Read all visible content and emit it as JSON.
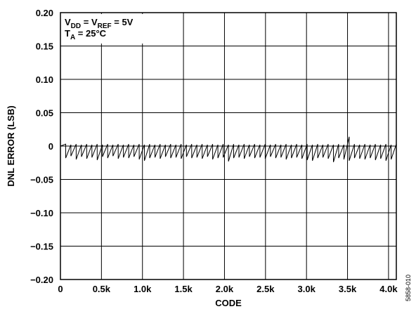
{
  "chart_data": {
    "type": "line",
    "title": "",
    "xlabel": "CODE",
    "ylabel": "DNL ERROR (LSB)",
    "xlim": [
      0,
      4095
    ],
    "ylim": [
      -0.2,
      0.2
    ],
    "grid": true,
    "x_ticks": [
      0,
      500,
      1000,
      1500,
      2000,
      2500,
      3000,
      3500,
      4000
    ],
    "x_tick_labels": [
      "0",
      "0.5k",
      "1.0k",
      "1.5k",
      "2.0k",
      "2.5k",
      "3.0k",
      "3.5k",
      "4.0k"
    ],
    "y_ticks": [
      0.2,
      0.15,
      0.1,
      0.05,
      0,
      -0.05,
      -0.1,
      -0.15,
      -0.2
    ],
    "y_tick_labels": [
      "0.20",
      "0.15",
      "0.10",
      "0.05",
      "0",
      "−0.05",
      "−0.10",
      "−0.15",
      "−0.20"
    ],
    "annotations": [
      {
        "main": "V",
        "sub": "DD",
        "mid": " = V",
        "sub2": "REF",
        "rest": " = 5V"
      },
      {
        "main": "T",
        "sub": "A",
        "mid": " = 25°C",
        "sub2": "",
        "rest": ""
      }
    ],
    "series": [
      {
        "points": [
          [
            0,
            0.0
          ],
          [
            64,
            0.003
          ],
          [
            64,
            -0.018
          ],
          [
            128,
            0.002
          ],
          [
            128,
            -0.015
          ],
          [
            192,
            0.003
          ],
          [
            192,
            -0.02
          ],
          [
            256,
            0.002
          ],
          [
            256,
            -0.016
          ],
          [
            320,
            0.003
          ],
          [
            320,
            -0.019
          ],
          [
            384,
            0.002
          ],
          [
            384,
            -0.017
          ],
          [
            448,
            0.003
          ],
          [
            448,
            -0.021
          ],
          [
            512,
            0.002
          ],
          [
            512,
            -0.016
          ],
          [
            576,
            0.003
          ],
          [
            576,
            -0.018
          ],
          [
            640,
            0.002
          ],
          [
            640,
            -0.015
          ],
          [
            704,
            0.003
          ],
          [
            704,
            -0.019
          ],
          [
            768,
            0.002
          ],
          [
            768,
            -0.017
          ],
          [
            832,
            0.003
          ],
          [
            832,
            -0.018
          ],
          [
            896,
            0.002
          ],
          [
            896,
            -0.016
          ],
          [
            960,
            0.003
          ],
          [
            960,
            -0.02
          ],
          [
            1024,
            0.002
          ],
          [
            1024,
            -0.022
          ],
          [
            1088,
            0.003
          ],
          [
            1088,
            -0.018
          ],
          [
            1152,
            0.002
          ],
          [
            1152,
            -0.017
          ],
          [
            1216,
            0.003
          ],
          [
            1216,
            -0.019
          ],
          [
            1280,
            0.002
          ],
          [
            1280,
            -0.016
          ],
          [
            1344,
            0.003
          ],
          [
            1344,
            -0.018
          ],
          [
            1408,
            0.002
          ],
          [
            1408,
            -0.017
          ],
          [
            1472,
            0.003
          ],
          [
            1472,
            -0.019
          ],
          [
            1536,
            0.002
          ],
          [
            1536,
            -0.016
          ],
          [
            1600,
            0.003
          ],
          [
            1600,
            -0.018
          ],
          [
            1664,
            0.002
          ],
          [
            1664,
            -0.017
          ],
          [
            1728,
            0.003
          ],
          [
            1728,
            -0.019
          ],
          [
            1792,
            0.002
          ],
          [
            1792,
            -0.016
          ],
          [
            1856,
            0.003
          ],
          [
            1856,
            -0.02
          ],
          [
            1920,
            0.002
          ],
          [
            1920,
            -0.018
          ],
          [
            1984,
            0.003
          ],
          [
            1984,
            -0.017
          ],
          [
            2048,
            0.002
          ],
          [
            2048,
            -0.023
          ],
          [
            2112,
            0.003
          ],
          [
            2112,
            -0.018
          ],
          [
            2176,
            0.002
          ],
          [
            2176,
            -0.017
          ],
          [
            2240,
            0.003
          ],
          [
            2240,
            -0.019
          ],
          [
            2304,
            0.002
          ],
          [
            2304,
            -0.016
          ],
          [
            2368,
            0.003
          ],
          [
            2368,
            -0.018
          ],
          [
            2432,
            0.002
          ],
          [
            2432,
            -0.017
          ],
          [
            2496,
            0.003
          ],
          [
            2496,
            -0.019
          ],
          [
            2560,
            0.002
          ],
          [
            2560,
            -0.016
          ],
          [
            2624,
            0.003
          ],
          [
            2624,
            -0.018
          ],
          [
            2688,
            0.002
          ],
          [
            2688,
            -0.017
          ],
          [
            2752,
            0.003
          ],
          [
            2752,
            -0.02
          ],
          [
            2816,
            0.002
          ],
          [
            2816,
            -0.018
          ],
          [
            2880,
            0.003
          ],
          [
            2880,
            -0.017
          ],
          [
            2944,
            0.002
          ],
          [
            2944,
            -0.019
          ],
          [
            3008,
            0.003
          ],
          [
            3008,
            -0.021
          ],
          [
            3072,
            0.002
          ],
          [
            3072,
            -0.022
          ],
          [
            3136,
            0.003
          ],
          [
            3136,
            -0.018
          ],
          [
            3200,
            0.002
          ],
          [
            3200,
            -0.017
          ],
          [
            3264,
            0.003
          ],
          [
            3264,
            -0.019
          ],
          [
            3328,
            0.002
          ],
          [
            3328,
            -0.024
          ],
          [
            3392,
            0.003
          ],
          [
            3392,
            -0.018
          ],
          [
            3456,
            0.002
          ],
          [
            3456,
            -0.02
          ],
          [
            3520,
            0.014
          ],
          [
            3520,
            -0.022
          ],
          [
            3584,
            0.003
          ],
          [
            3584,
            -0.018
          ],
          [
            3648,
            0.002
          ],
          [
            3648,
            -0.019
          ],
          [
            3712,
            0.003
          ],
          [
            3712,
            -0.02
          ],
          [
            3776,
            0.002
          ],
          [
            3776,
            -0.018
          ],
          [
            3840,
            0.003
          ],
          [
            3840,
            -0.021
          ],
          [
            3904,
            0.002
          ],
          [
            3904,
            -0.019
          ],
          [
            3968,
            0.003
          ],
          [
            3968,
            -0.022
          ],
          [
            4032,
            0.002
          ],
          [
            4032,
            -0.02
          ],
          [
            4095,
            0.003
          ]
        ]
      }
    ]
  },
  "figure_id": "5858-010"
}
